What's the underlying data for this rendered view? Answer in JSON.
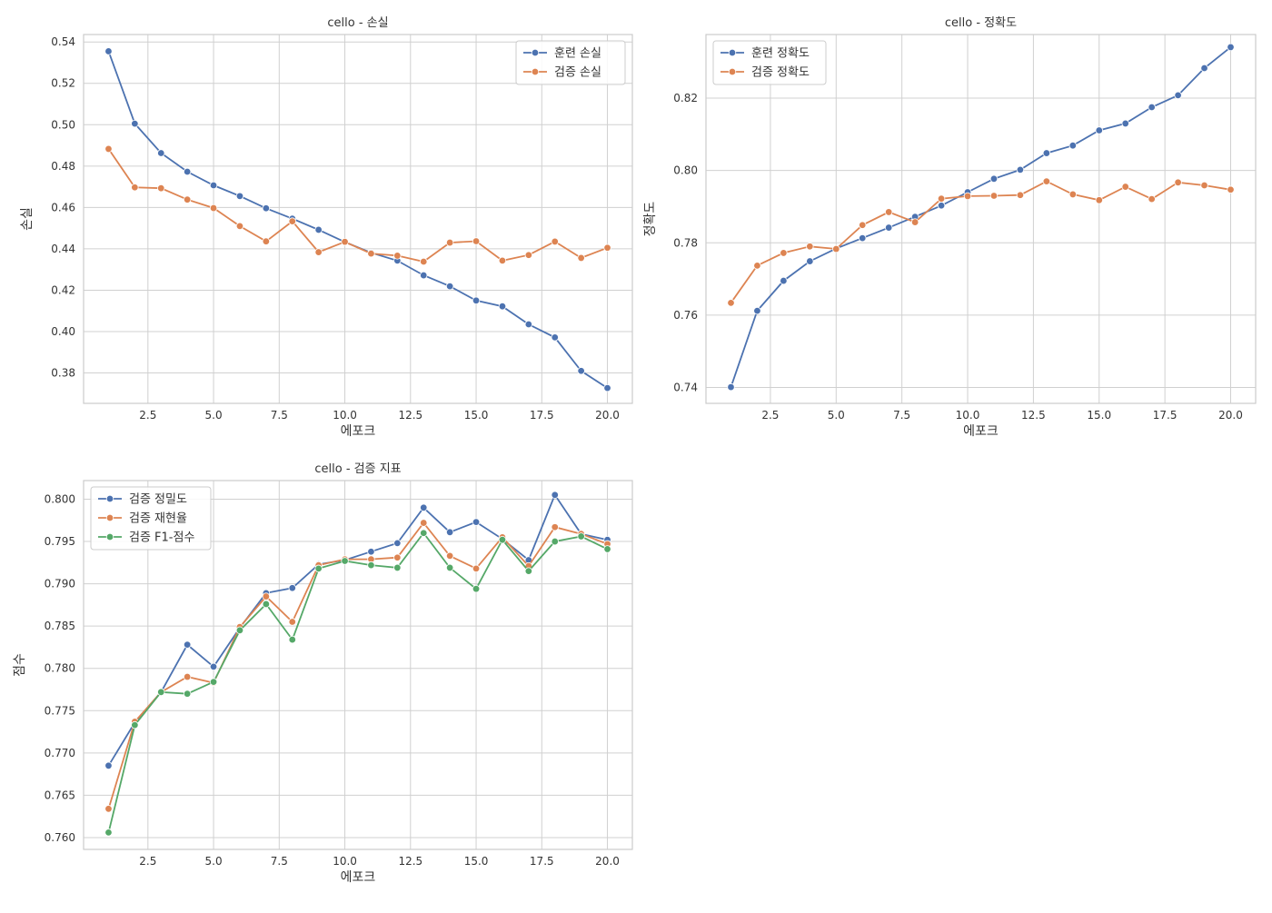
{
  "colors": {
    "blue": "#4c72b0",
    "orange": "#dd8452",
    "green": "#55a868",
    "grid": "#d0d0d0",
    "frame": "#cccccc"
  },
  "chart_data": [
    {
      "type": "line",
      "title": "cello - 손실",
      "xlabel": "에포크",
      "ylabel": "손실",
      "xlim": [
        0.05,
        20.95
      ],
      "ylim": [
        0.3653,
        0.5436
      ],
      "xticks": [
        "2.5",
        "5.0",
        "7.5",
        "10.0",
        "12.5",
        "15.0",
        "17.5",
        "20.0"
      ],
      "xtick_values": [
        2.5,
        5,
        7.5,
        10,
        12.5,
        15,
        17.5,
        20
      ],
      "yticks": [
        "0.38",
        "0.40",
        "0.42",
        "0.44",
        "0.46",
        "0.48",
        "0.50",
        "0.52",
        "0.54"
      ],
      "ytick_values": [
        0.38,
        0.4,
        0.42,
        0.44,
        0.46,
        0.48,
        0.5,
        0.52,
        0.54
      ],
      "legend_position": "upper right",
      "grid": true,
      "x": [
        1,
        2,
        3,
        4,
        5,
        6,
        7,
        8,
        9,
        10,
        11,
        12,
        13,
        14,
        15,
        16,
        17,
        18,
        19,
        20
      ],
      "series": [
        {
          "name": "훈련 손실",
          "color": "blue",
          "values": [
            0.5355,
            0.5005,
            0.4863,
            0.4773,
            0.4707,
            0.4655,
            0.4596,
            0.4546,
            0.4492,
            0.4433,
            0.4381,
            0.4343,
            0.4272,
            0.4219,
            0.415,
            0.4122,
            0.4035,
            0.3972,
            0.381,
            0.3727
          ]
        },
        {
          "name": "검증 손실",
          "color": "orange",
          "values": [
            0.4883,
            0.4697,
            0.4693,
            0.4638,
            0.4597,
            0.451,
            0.4436,
            0.4533,
            0.4384,
            0.4434,
            0.4377,
            0.4367,
            0.4338,
            0.443,
            0.4437,
            0.4343,
            0.437,
            0.4435,
            0.4356,
            0.4405
          ]
        }
      ]
    },
    {
      "type": "line",
      "title": "cello - 정확도",
      "xlabel": "에포크",
      "ylabel": "정확도",
      "xlim": [
        0.05,
        20.95
      ],
      "ylim": [
        0.7356,
        0.8376
      ],
      "xticks": [
        "2.5",
        "5.0",
        "7.5",
        "10.0",
        "12.5",
        "15.0",
        "17.5",
        "20.0"
      ],
      "xtick_values": [
        2.5,
        5,
        7.5,
        10,
        12.5,
        15,
        17.5,
        20
      ],
      "yticks": [
        "0.74",
        "0.76",
        "0.78",
        "0.80",
        "0.82"
      ],
      "ytick_values": [
        0.74,
        0.76,
        0.78,
        0.8,
        0.82
      ],
      "legend_position": "upper left",
      "grid": true,
      "x": [
        1,
        2,
        3,
        4,
        5,
        6,
        7,
        8,
        9,
        10,
        11,
        12,
        13,
        14,
        15,
        16,
        17,
        18,
        19,
        20
      ],
      "series": [
        {
          "name": "훈련 정확도",
          "color": "blue",
          "values": [
            0.7401,
            0.7612,
            0.7695,
            0.7749,
            0.7784,
            0.7813,
            0.7842,
            0.7872,
            0.7903,
            0.794,
            0.7977,
            0.8002,
            0.8048,
            0.8069,
            0.8111,
            0.813,
            0.8175,
            0.8208,
            0.8283,
            0.8341
          ]
        },
        {
          "name": "검증 정확도",
          "color": "orange",
          "values": [
            0.7634,
            0.7737,
            0.7772,
            0.779,
            0.7783,
            0.7849,
            0.7885,
            0.7857,
            0.7922,
            0.7929,
            0.793,
            0.7932,
            0.797,
            0.7934,
            0.7918,
            0.7955,
            0.7921,
            0.7967,
            0.7959,
            0.7947
          ]
        }
      ]
    },
    {
      "type": "line",
      "title": "cello - 검증 지표",
      "xlabel": "에포크",
      "ylabel": "점수",
      "xlim": [
        0.05,
        20.95
      ],
      "ylim": [
        0.7586,
        0.8022
      ],
      "xticks": [
        "2.5",
        "5.0",
        "7.5",
        "10.0",
        "12.5",
        "15.0",
        "17.5",
        "20.0"
      ],
      "xtick_values": [
        2.5,
        5,
        7.5,
        10,
        12.5,
        15,
        17.5,
        20
      ],
      "yticks": [
        "0.760",
        "0.765",
        "0.770",
        "0.775",
        "0.780",
        "0.785",
        "0.790",
        "0.795",
        "0.800"
      ],
      "ytick_values": [
        0.76,
        0.765,
        0.77,
        0.775,
        0.78,
        0.785,
        0.79,
        0.795,
        0.8
      ],
      "legend_position": "upper left",
      "grid": true,
      "x": [
        1,
        2,
        3,
        4,
        5,
        6,
        7,
        8,
        9,
        10,
        11,
        12,
        13,
        14,
        15,
        16,
        17,
        18,
        19,
        20
      ],
      "series": [
        {
          "name": "검증 정밀도",
          "color": "blue",
          "values": [
            0.7685,
            0.7736,
            0.7772,
            0.7828,
            0.7802,
            0.7848,
            0.7889,
            0.7895,
            0.7923,
            0.7928,
            0.7938,
            0.7948,
            0.799,
            0.7961,
            0.7973,
            0.7953,
            0.7928,
            0.8005,
            0.7959,
            0.7952
          ]
        },
        {
          "name": "검증 재현율",
          "color": "orange",
          "values": [
            0.7634,
            0.7737,
            0.7772,
            0.779,
            0.7783,
            0.7849,
            0.7885,
            0.7855,
            0.7922,
            0.7929,
            0.7929,
            0.7931,
            0.7972,
            0.7933,
            0.7918,
            0.7955,
            0.7921,
            0.7967,
            0.7959,
            0.7947
          ]
        },
        {
          "name": "검증 F1-점수",
          "color": "green",
          "values": [
            0.7606,
            0.7733,
            0.7772,
            0.777,
            0.7784,
            0.7845,
            0.7876,
            0.7834,
            0.7918,
            0.7927,
            0.7922,
            0.7919,
            0.796,
            0.7919,
            0.7894,
            0.7952,
            0.7915,
            0.795,
            0.7956,
            0.7941
          ]
        }
      ]
    }
  ]
}
